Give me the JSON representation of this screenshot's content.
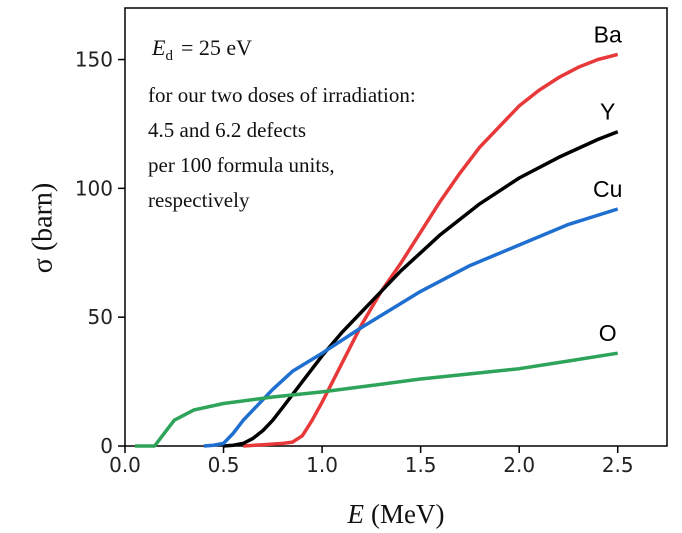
{
  "chart_data": {
    "type": "line",
    "y_label": "σ (barn)",
    "x_label": {
      "symbol": "E",
      "unit": "(MeV)"
    },
    "annotation": {
      "symbol": "E",
      "subscript": "d",
      "text": "= 25 eV",
      "lines": [
        "for our two doses of irradiation:",
        "4.5 and 6.2 defects",
        "per 100 formula units,",
        "respectively"
      ]
    },
    "xlim": [
      0,
      2.75
    ],
    "ylim": [
      0,
      170
    ],
    "xticks": [
      {
        "value": 0,
        "label": "0.0"
      },
      0.5,
      {
        "value": 1,
        "label": "1.0"
      },
      1.5,
      {
        "value": 2,
        "label": "2.0"
      },
      2.5
    ],
    "yticks": [
      0,
      50,
      100,
      150
    ],
    "series": [
      {
        "name": "Ba",
        "color": "#e8393a",
        "x": [
          0.6,
          0.7,
          0.8,
          0.85,
          0.9,
          0.95,
          1.0,
          1.1,
          1.2,
          1.3,
          1.4,
          1.5,
          1.6,
          1.7,
          1.8,
          1.9,
          2.0,
          2.1,
          2.2,
          2.3,
          2.4,
          2.5
        ],
        "values": [
          0,
          0.5,
          1,
          1.5,
          4,
          10,
          17,
          32,
          47,
          60,
          71,
          83,
          95,
          106,
          116,
          124,
          132,
          138,
          143,
          147,
          150,
          152
        ]
      },
      {
        "name": "Y",
        "color": "#000000",
        "x": [
          0.5,
          0.55,
          0.6,
          0.65,
          0.7,
          0.75,
          0.8,
          0.9,
          1.0,
          1.1,
          1.2,
          1.3,
          1.4,
          1.5,
          1.6,
          1.8,
          2.0,
          2.2,
          2.4,
          2.5
        ],
        "values": [
          0,
          0.3,
          1,
          3,
          6,
          10,
          15,
          25,
          35,
          44,
          52,
          60,
          68,
          75,
          82,
          94,
          104,
          112,
          119,
          122
        ]
      },
      {
        "name": "Cu",
        "color": "#1f6fd0",
        "x": [
          0.4,
          0.45,
          0.5,
          0.55,
          0.6,
          0.7,
          0.75,
          0.85,
          1.0,
          1.2,
          1.5,
          1.75,
          2.0,
          2.25,
          2.5
        ],
        "values": [
          0,
          0.3,
          1,
          5,
          10,
          18,
          22,
          29,
          36,
          46,
          60,
          70,
          78,
          86,
          92
        ]
      },
      {
        "name": "O",
        "color": "#2ea35a",
        "x": [
          0.05,
          0.15,
          0.2,
          0.25,
          0.35,
          0.5,
          0.75,
          1.0,
          1.25,
          1.5,
          1.75,
          2.0,
          2.25,
          2.5
        ],
        "values": [
          0,
          0,
          5,
          10,
          14,
          16.5,
          19,
          21,
          23.5,
          26,
          28,
          30,
          33,
          36
        ]
      }
    ]
  }
}
